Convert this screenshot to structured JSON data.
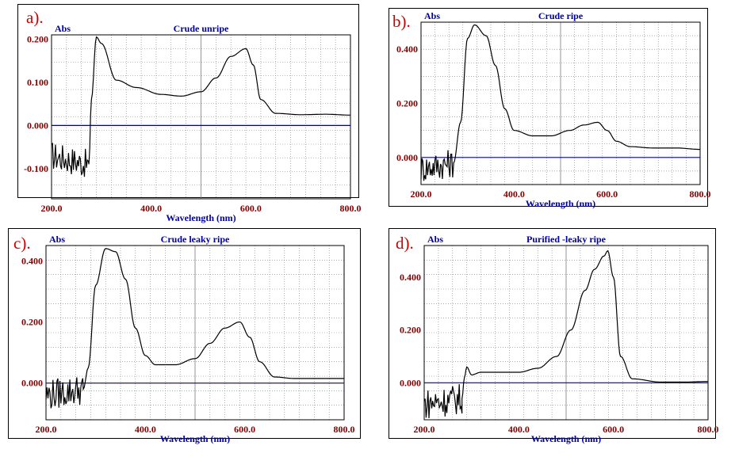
{
  "colors": {
    "tick_label": "#800000",
    "header_label": "#0000a0",
    "baseline": "#0000a0",
    "grid": "#7a7a7a",
    "curve": "#000000",
    "panel_letter": "#cc0000"
  },
  "chart_data": [
    {
      "panel_label": "a).",
      "type": "line",
      "title": "Crude unripe",
      "ylabel": "Abs",
      "xlabel": "Wavelength (nm)",
      "xlim": [
        200,
        800
      ],
      "ylim": [
        -0.17,
        0.21
      ],
      "xticks": [
        "200.0",
        "400.0",
        "600.0",
        "800.0"
      ],
      "yticks": [
        "0.200",
        "0.100",
        "0.000",
        "-0.100"
      ],
      "ytick_values": [
        0.2,
        0.1,
        0.0,
        -0.1
      ],
      "grid": true,
      "baseline": 0.0,
      "series": [
        {
          "x": [
            200,
            275,
            280,
            290,
            300,
            330,
            370,
            420,
            460,
            500,
            530,
            560,
            590,
            605,
            620,
            650,
            700,
            750,
            800
          ],
          "y": [
            -0.07,
            -0.09,
            0.06,
            0.205,
            0.19,
            0.105,
            0.088,
            0.072,
            0.068,
            0.078,
            0.11,
            0.16,
            0.178,
            0.14,
            0.06,
            0.028,
            0.025,
            0.026,
            0.024
          ]
        }
      ]
    },
    {
      "panel_label": "b).",
      "type": "line",
      "title": "Crude ripe",
      "ylabel": "Abs",
      "xlabel": "Wavelength (nm)",
      "xlim": [
        200,
        800
      ],
      "ylim": [
        -0.1,
        0.5
      ],
      "xticks": [
        "200.0",
        "400.0",
        "600.0",
        "800.0"
      ],
      "yticks": [
        "0.400",
        "0.200",
        "0.000"
      ],
      "ytick_values": [
        0.4,
        0.2,
        0.0
      ],
      "grid": true,
      "baseline": 0.0,
      "series": [
        {
          "x": [
            200,
            270,
            285,
            300,
            315,
            340,
            360,
            380,
            400,
            440,
            480,
            520,
            550,
            580,
            600,
            620,
            650,
            700,
            750,
            800
          ],
          "y": [
            -0.04,
            -0.02,
            0.13,
            0.44,
            0.49,
            0.45,
            0.34,
            0.18,
            0.1,
            0.08,
            0.08,
            0.1,
            0.12,
            0.13,
            0.1,
            0.06,
            0.04,
            0.035,
            0.035,
            0.03
          ]
        }
      ]
    },
    {
      "panel_label": "c).",
      "type": "line",
      "title": "Crude leaky ripe",
      "ylabel": "Abs",
      "xlabel": "Wavelength (nm)",
      "xlim": [
        200,
        800
      ],
      "ylim": [
        -0.12,
        0.45
      ],
      "xticks": [
        "200.0",
        "400.0",
        "600.0",
        "800.0"
      ],
      "yticks": [
        "0.400",
        "0.200",
        "0.000"
      ],
      "ytick_values": [
        0.4,
        0.2,
        0.0
      ],
      "grid": true,
      "baseline": 0.0,
      "series": [
        {
          "x": [
            200,
            275,
            285,
            300,
            320,
            340,
            360,
            380,
            400,
            420,
            460,
            500,
            530,
            560,
            590,
            610,
            630,
            660,
            700,
            750,
            800
          ],
          "y": [
            -0.04,
            -0.02,
            0.05,
            0.32,
            0.44,
            0.43,
            0.34,
            0.18,
            0.09,
            0.06,
            0.06,
            0.08,
            0.13,
            0.18,
            0.2,
            0.15,
            0.07,
            0.02,
            0.015,
            0.015,
            0.015
          ]
        }
      ]
    },
    {
      "panel_label": "d).",
      "type": "line",
      "title": "Purified -leaky ripe",
      "ylabel": "Abs",
      "xlabel": "Wavelength (nm)",
      "xlim": [
        200,
        800
      ],
      "ylim": [
        -0.14,
        0.52
      ],
      "xticks": [
        "200.0",
        "400.0",
        "600.0",
        "800.0"
      ],
      "yticks": [
        "0.400",
        "0.200",
        "0.000"
      ],
      "ytick_values": [
        0.4,
        0.2,
        0.0
      ],
      "grid": true,
      "baseline": 0.0,
      "series": [
        {
          "x": [
            200,
            280,
            285,
            290,
            300,
            320,
            360,
            400,
            440,
            480,
            510,
            540,
            560,
            580,
            588,
            600,
            615,
            640,
            700,
            750,
            800
          ],
          "y": [
            -0.08,
            -0.06,
            0.02,
            0.06,
            0.03,
            0.04,
            0.04,
            0.04,
            0.055,
            0.1,
            0.2,
            0.35,
            0.43,
            0.48,
            0.5,
            0.4,
            0.1,
            0.015,
            0.003,
            0.003,
            0.005
          ]
        }
      ]
    }
  ]
}
